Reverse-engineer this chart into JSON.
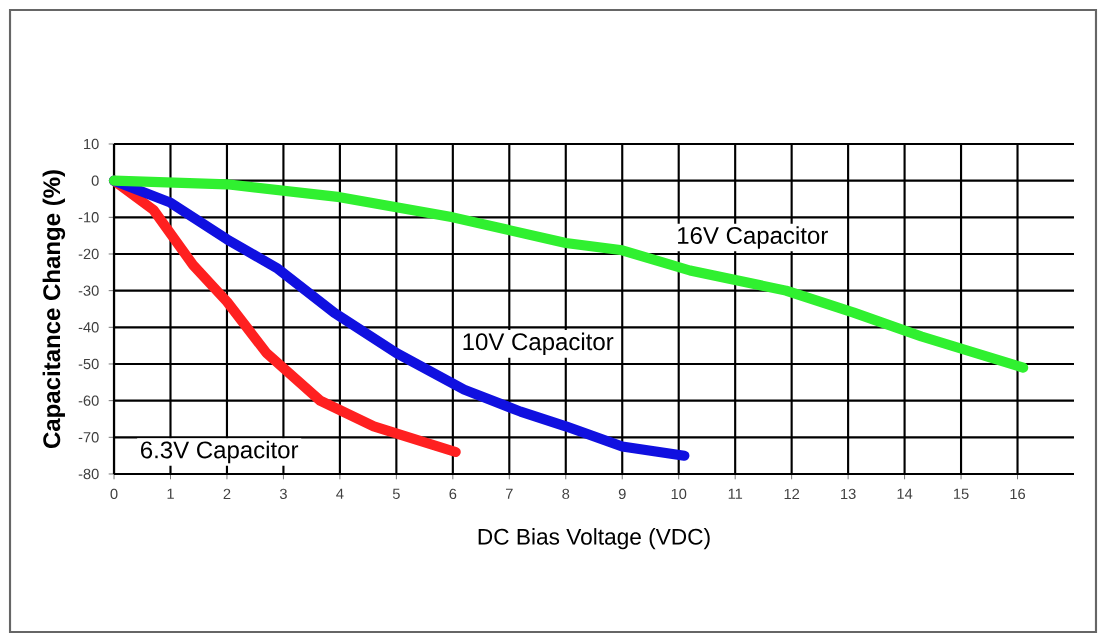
{
  "chart_data": {
    "type": "line",
    "xlabel": "DC Bias Voltage (VDC)",
    "ylabel": "Capacitance Change (%)",
    "xlim": [
      0,
      17
    ],
    "xticks": [
      0,
      1,
      2,
      3,
      4,
      5,
      6,
      7,
      8,
      9,
      10,
      11,
      12,
      13,
      14,
      15,
      16
    ],
    "ylim": [
      -80,
      10
    ],
    "yticks": [
      -80,
      -70,
      -60,
      -50,
      -40,
      -30,
      -20,
      -10,
      0,
      10
    ],
    "grid": true,
    "series": [
      {
        "name": "6.3V Capacitor",
        "color": "#ff2020",
        "x": [
          0,
          0.7,
          1.4,
          2,
          2.7,
          3.65,
          4.6,
          6.05
        ],
        "values": [
          0,
          -8,
          -23,
          -33,
          -47,
          -60,
          -67,
          -74
        ]
      },
      {
        "name": "10V Capacitor",
        "color": "#1010e0",
        "x": [
          0,
          1,
          2,
          2.9,
          3.9,
          5,
          6.2,
          7.2,
          8,
          9,
          10.1
        ],
        "values": [
          0,
          -6,
          -16,
          -24,
          -36,
          -47,
          -57,
          -63,
          -67,
          -72.5,
          -75
        ]
      },
      {
        "name": "16V Capacitor",
        "color": "#30f030",
        "x": [
          0,
          2,
          4,
          6,
          8,
          9,
          10.2,
          11.9,
          13.1,
          14.3,
          16.1
        ],
        "values": [
          0,
          -1,
          -4.5,
          -10,
          -17,
          -19,
          -24.5,
          -30,
          -36,
          -42.5,
          -51
        ]
      }
    ]
  }
}
